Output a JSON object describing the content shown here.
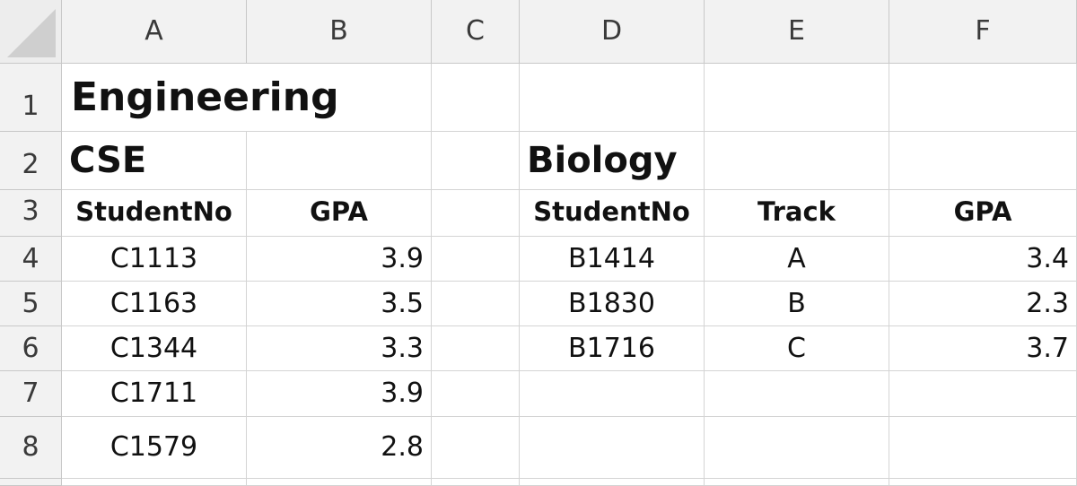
{
  "columns": [
    "A",
    "B",
    "C",
    "D",
    "E",
    "F"
  ],
  "rows": [
    "1",
    "2",
    "3",
    "4",
    "5",
    "6",
    "7",
    "8",
    ""
  ],
  "title": "Engineering",
  "cse": {
    "label": "CSE",
    "headers": [
      "StudentNo",
      "GPA"
    ],
    "records": [
      [
        "C1113",
        "3.9"
      ],
      [
        "C1163",
        "3.5"
      ],
      [
        "C1344",
        "3.3"
      ],
      [
        "C1711",
        "3.9"
      ],
      [
        "C1579",
        "2.8"
      ]
    ]
  },
  "biology": {
    "label": "Biology",
    "headers": [
      "StudentNo",
      "Track",
      "GPA"
    ],
    "records": [
      [
        "B1414",
        "A",
        "3.4"
      ],
      [
        "B1830",
        "B",
        "2.3"
      ],
      [
        "B1716",
        "C",
        "3.7"
      ]
    ]
  }
}
